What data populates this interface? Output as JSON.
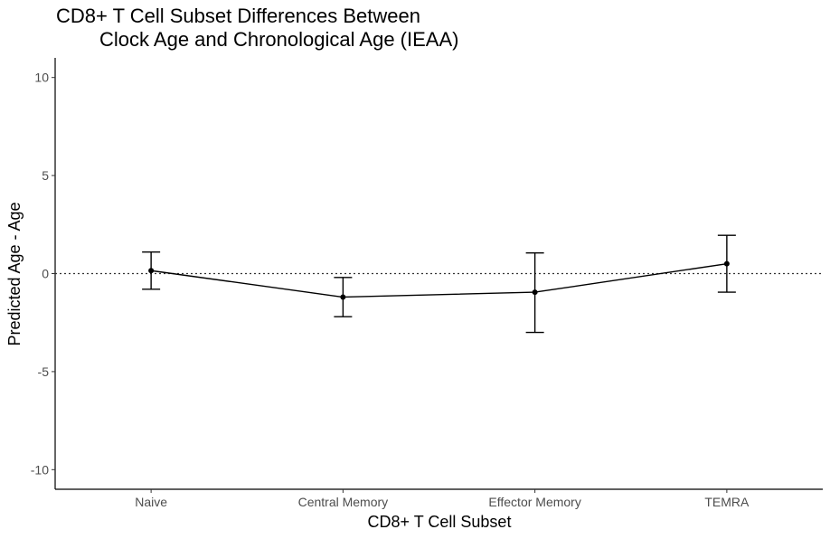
{
  "chart_data": {
    "type": "line",
    "title_line1": "CD8+ T Cell Subset Differences Between",
    "title_line2": "Clock Age and Chronological Age (IEAA)",
    "xlabel": "CD8+ T Cell Subset",
    "ylabel": "Predicted Age - Age",
    "categories": [
      "Naive",
      "Central Memory",
      "Effector Memory",
      "TEMRA"
    ],
    "series": [
      {
        "values": [
          0.15,
          -1.2,
          -0.95,
          0.5
        ],
        "lower": [
          -0.8,
          -2.2,
          -3.0,
          -0.95
        ],
        "upper": [
          1.1,
          -0.2,
          1.05,
          1.95
        ]
      }
    ],
    "ylim": [
      -11,
      11
    ],
    "yticks": [
      -10,
      -5,
      0,
      5,
      10
    ],
    "ytick_labels": [
      "-10",
      "-5",
      "0",
      "5",
      "10"
    ],
    "reference_line": 0,
    "grid": false,
    "colors": {
      "line": "#000000",
      "reference": "#333333"
    }
  }
}
